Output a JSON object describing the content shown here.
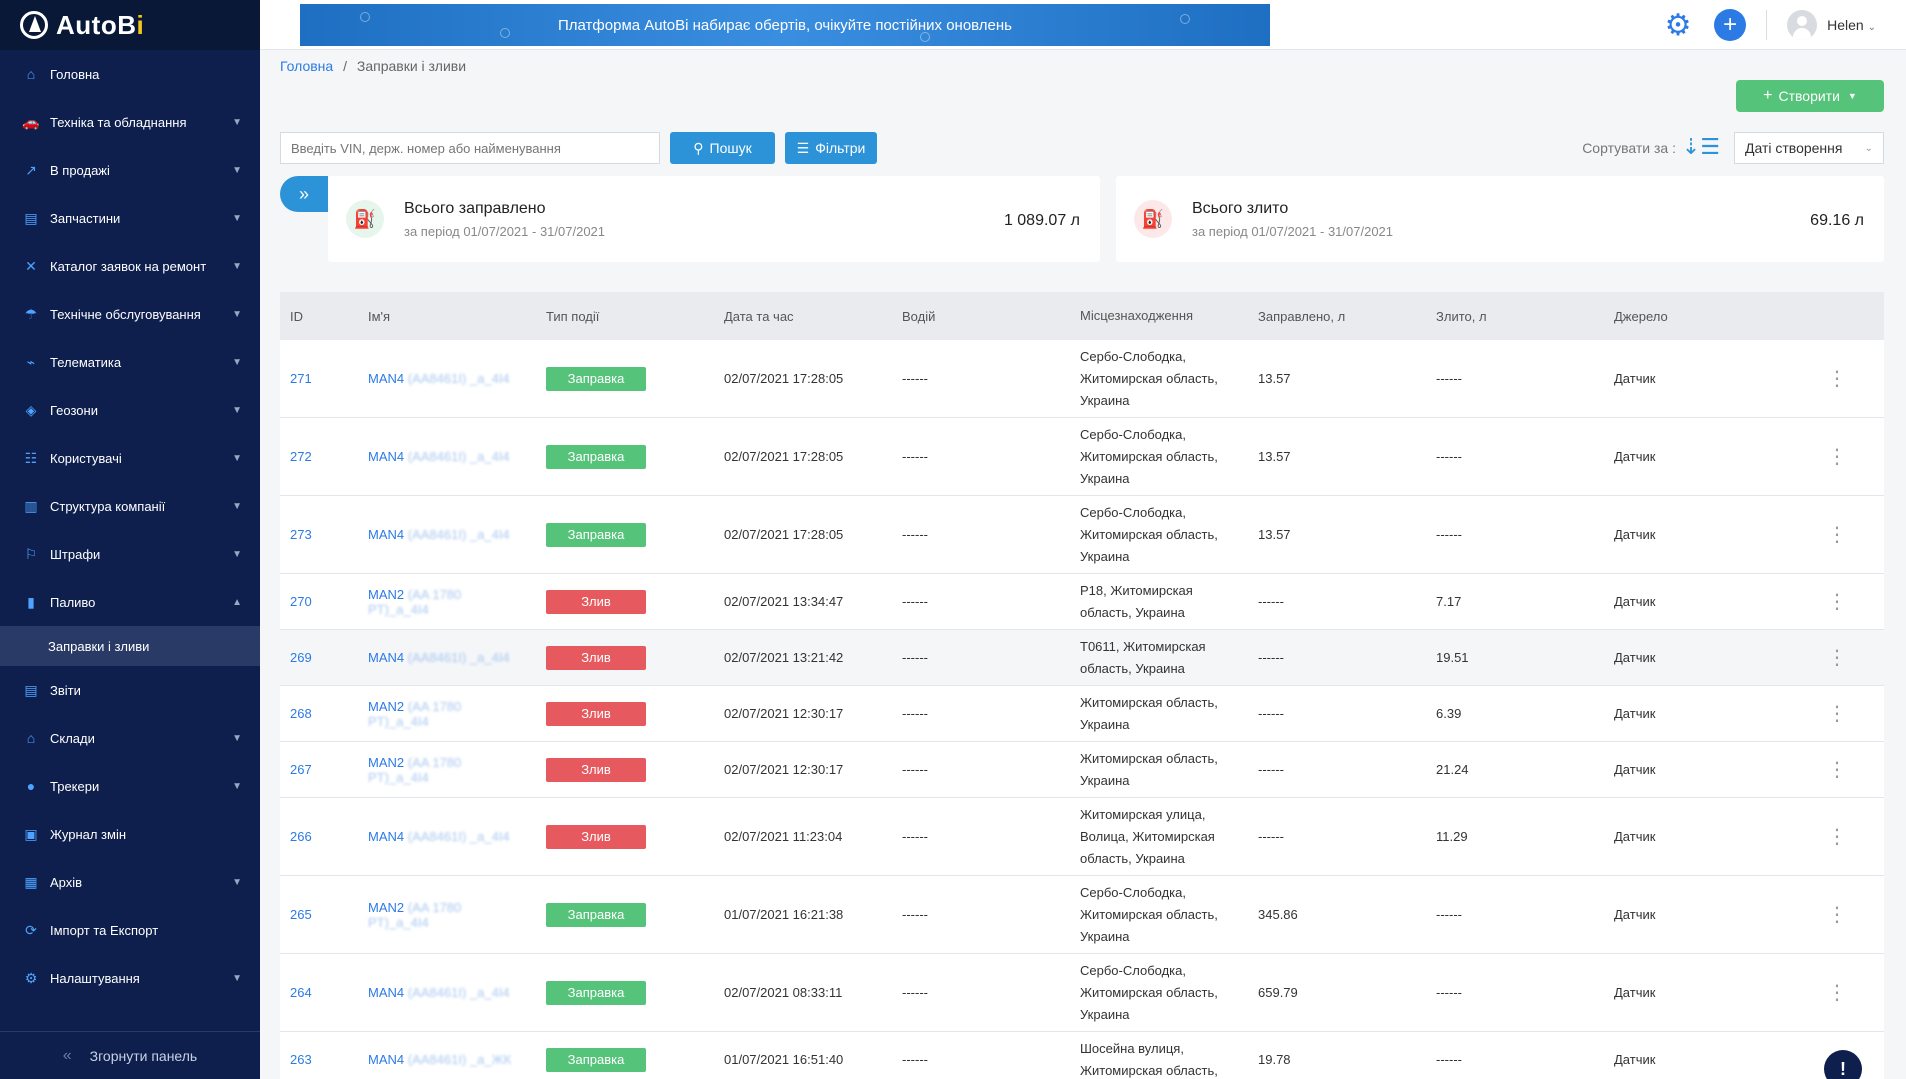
{
  "app": {
    "logo_prefix": "AutoB",
    "logo_accent": "i"
  },
  "banner": {
    "text": "Платформа AutoBi набирає обертів, очікуйте постійних оновлень"
  },
  "user": {
    "name": "Helen"
  },
  "sidebar": {
    "items": [
      {
        "label": "Головна",
        "icon": "home-icon",
        "chevron": false
      },
      {
        "label": "Техніка та обладнання",
        "icon": "car-icon",
        "chevron": true
      },
      {
        "label": "В продажі",
        "icon": "sale-icon",
        "chevron": true
      },
      {
        "label": "Запчастини",
        "icon": "parts-icon",
        "chevron": true
      },
      {
        "label": "Каталог заявок на ремонт",
        "icon": "tools-icon",
        "chevron": true
      },
      {
        "label": "Технічне обслуговування",
        "icon": "service-icon",
        "chevron": true
      },
      {
        "label": "Телематика",
        "icon": "telematics-icon",
        "chevron": true
      },
      {
        "label": "Геозони",
        "icon": "geozone-icon",
        "chevron": true
      },
      {
        "label": "Користувачі",
        "icon": "users-icon",
        "chevron": true
      },
      {
        "label": "Структура компанії",
        "icon": "structure-icon",
        "chevron": true
      },
      {
        "label": "Штрафи",
        "icon": "fines-icon",
        "chevron": true
      },
      {
        "label": "Паливо",
        "icon": "fuel-icon",
        "chevron": "up"
      },
      {
        "label": "Заправки і зливи",
        "sub": true
      },
      {
        "label": "Звіти",
        "icon": "reports-icon",
        "chevron": false
      },
      {
        "label": "Склади",
        "icon": "warehouse-icon",
        "chevron": true
      },
      {
        "label": "Трекери",
        "icon": "tracker-icon",
        "chevron": true
      },
      {
        "label": "Журнал змін",
        "icon": "log-icon",
        "chevron": false
      },
      {
        "label": "Архів",
        "icon": "archive-icon",
        "chevron": true
      },
      {
        "label": "Імпорт та Експорт",
        "icon": "import-icon",
        "chevron": false
      },
      {
        "label": "Налаштування",
        "icon": "settings-icon",
        "chevron": true
      }
    ],
    "collapse_label": "Згорнути панель"
  },
  "breadcrumb": {
    "home": "Головна",
    "separator": "/",
    "current": "Заправки і зливи"
  },
  "toolbar": {
    "create_label": "Створити",
    "search_placeholder": "Введіть VIN, держ. номер або найменування",
    "search_label": "Пошук",
    "filters_label": "Фільтри",
    "sort_label": "Сортувати за :",
    "sort_value": "Даті створення"
  },
  "summary": {
    "refueled": {
      "title": "Всього заправлено",
      "period": "за період 01/07/2021 - 31/07/2021",
      "value": "1 089.07 л"
    },
    "drained": {
      "title": "Всього злито",
      "period": "за період 01/07/2021 - 31/07/2021",
      "value": "69.16 л"
    }
  },
  "table": {
    "headers": [
      "ID",
      "Ім'я",
      "Тип події",
      "Дата та час",
      "Водій",
      "Місцезнаходження",
      "Заправлено, л",
      "Злито, л",
      "Джерело"
    ],
    "rows": [
      {
        "id": "271",
        "name": "MAN4",
        "name2": "(AA8461I) _a_4I4",
        "type": "Заправка",
        "kind": "refuel",
        "date": "02/07/2021 17:28:05",
        "driver": "------",
        "loc": [
          "Сербо-Слободка,",
          "Житомирская область,",
          "Украина"
        ],
        "fill": "13.57",
        "drain": "------",
        "src": "Датчик"
      },
      {
        "id": "272",
        "name": "MAN4",
        "name2": "(AA8461I) _a_4I4",
        "type": "Заправка",
        "kind": "refuel",
        "date": "02/07/2021 17:28:05",
        "driver": "------",
        "loc": [
          "Сербо-Слободка,",
          "Житомирская область,",
          "Украина"
        ],
        "fill": "13.57",
        "drain": "------",
        "src": "Датчик"
      },
      {
        "id": "273",
        "name": "MAN4",
        "name2": "(AA8461I) _a_4I4",
        "type": "Заправка",
        "kind": "refuel",
        "date": "02/07/2021 17:28:05",
        "driver": "------",
        "loc": [
          "Сербо-Слободка,",
          "Житомирская область,",
          "Украина"
        ],
        "fill": "13.57",
        "drain": "------",
        "src": "Датчик"
      },
      {
        "id": "270",
        "name": "MAN2",
        "name2": "(AA 1780",
        "name3": "PT)_a_4I4",
        "type": "Злив",
        "kind": "drain",
        "date": "02/07/2021 13:34:47",
        "driver": "------",
        "loc": [
          "Р18, Житомирская",
          "область, Украина"
        ],
        "fill": "------",
        "drain": "7.17",
        "src": "Датчик"
      },
      {
        "id": "269",
        "name": "MAN4",
        "name2": "(AA8461I) _a_4I4",
        "type": "Злив",
        "kind": "drain",
        "date": "02/07/2021 13:21:42",
        "driver": "------",
        "loc": [
          "Т0611, Житомирская",
          "область, Украина"
        ],
        "fill": "------",
        "drain": "19.51",
        "src": "Датчик"
      },
      {
        "id": "268",
        "name": "MAN2",
        "name2": "(AA 1780",
        "name3": "PT)_a_4I4",
        "type": "Злив",
        "kind": "drain",
        "date": "02/07/2021 12:30:17",
        "driver": "------",
        "loc": [
          "Житомирская область,",
          "Украина"
        ],
        "fill": "------",
        "drain": "6.39",
        "src": "Датчик"
      },
      {
        "id": "267",
        "name": "MAN2",
        "name2": "(AA 1780",
        "name3": "PT)_a_4I4",
        "type": "Злив",
        "kind": "drain",
        "date": "02/07/2021 12:30:17",
        "driver": "------",
        "loc": [
          "Житомирская область,",
          "Украина"
        ],
        "fill": "------",
        "drain": "21.24",
        "src": "Датчик"
      },
      {
        "id": "266",
        "name": "MAN4",
        "name2": "(AA8461I) _a_4I4",
        "type": "Злив",
        "kind": "drain",
        "date": "02/07/2021 11:23:04",
        "driver": "------",
        "loc": [
          "Житомирская улица,",
          "Волица, Житомирская",
          "область, Украина"
        ],
        "fill": "------",
        "drain": "11.29",
        "src": "Датчик"
      },
      {
        "id": "265",
        "name": "MAN2",
        "name2": "(AA 1780",
        "name3": "PT)_a_4I4",
        "type": "Заправка",
        "kind": "refuel",
        "date": "01/07/2021 16:21:38",
        "driver": "------",
        "loc": [
          "Сербо-Слободка,",
          "Житомирская область,",
          "Украина"
        ],
        "fill": "345.86",
        "drain": "------",
        "src": "Датчик"
      },
      {
        "id": "264",
        "name": "MAN4",
        "name2": "(AA8461I) _a_4I4",
        "type": "Заправка",
        "kind": "refuel",
        "date": "02/07/2021 08:33:11",
        "driver": "------",
        "loc": [
          "Сербо-Слободка,",
          "Житомирская область,",
          "Украина"
        ],
        "fill": "659.79",
        "drain": "------",
        "src": "Датчик"
      },
      {
        "id": "263",
        "name": "MAN4",
        "name2": "(AA8461I) _a_ЖК",
        "type": "Заправка",
        "kind": "refuel",
        "date": "01/07/2021 16:51:40",
        "driver": "------",
        "loc": [
          "Шосейна вулиця,",
          "Житомирская область,"
        ],
        "fill": "19.78",
        "drain": "------",
        "src": "Датчик"
      }
    ]
  }
}
